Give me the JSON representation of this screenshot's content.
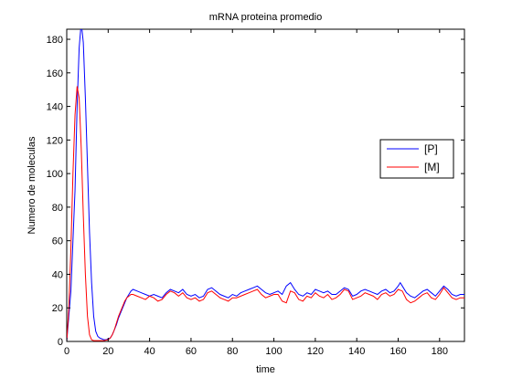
{
  "chart_data": {
    "type": "line",
    "title": "mRNA proteina promedio",
    "xlabel": "time",
    "ylabel": "Numero de moleculas",
    "xlim": [
      0,
      192
    ],
    "ylim": [
      0,
      186
    ],
    "xticks": [
      0,
      20,
      40,
      60,
      80,
      100,
      120,
      140,
      160,
      180
    ],
    "yticks": [
      0,
      20,
      40,
      60,
      80,
      100,
      120,
      140,
      160,
      180
    ],
    "grid": false,
    "legend_position": "right",
    "series": [
      {
        "name": "[P]",
        "color": "#0000ff",
        "x": [
          0,
          2,
          4,
          5,
          6,
          7,
          8,
          9,
          10,
          11,
          12,
          13,
          14,
          15,
          16,
          17,
          18,
          19,
          20,
          21,
          22,
          23,
          24,
          25,
          26,
          27,
          28,
          29,
          30,
          31,
          32,
          34,
          36,
          38,
          40,
          42,
          44,
          46,
          48,
          50,
          52,
          54,
          56,
          58,
          60,
          62,
          64,
          66,
          68,
          70,
          72,
          74,
          76,
          78,
          80,
          82,
          84,
          86,
          88,
          90,
          92,
          94,
          96,
          98,
          100,
          102,
          104,
          106,
          108,
          110,
          112,
          114,
          116,
          118,
          120,
          122,
          124,
          126,
          128,
          130,
          132,
          134,
          136,
          138,
          140,
          142,
          144,
          146,
          148,
          150,
          152,
          154,
          156,
          158,
          160,
          161,
          162,
          164,
          166,
          168,
          170,
          172,
          174,
          176,
          178,
          180,
          182,
          184,
          186,
          188,
          190,
          192
        ],
        "values": [
          0,
          30,
          90,
          140,
          175,
          190,
          178,
          145,
          105,
          65,
          35,
          15,
          6,
          3,
          2,
          1.5,
          1,
          1,
          1.5,
          2,
          4,
          7,
          10,
          14,
          17,
          20,
          23,
          26,
          28,
          30,
          31,
          30,
          29,
          28,
          27,
          28,
          27,
          26,
          29,
          31,
          30,
          29,
          31,
          28,
          27,
          28,
          26,
          27,
          31,
          32,
          30,
          28,
          27,
          26,
          28,
          27,
          29,
          30,
          31,
          32,
          33,
          31,
          29,
          28,
          29,
          30,
          28,
          33,
          35,
          31,
          28,
          27,
          29,
          28,
          31,
          30,
          29,
          30,
          28,
          28,
          30,
          32,
          31,
          27,
          28,
          30,
          31,
          30,
          29,
          28,
          30,
          31,
          29,
          30,
          33,
          35,
          33,
          29,
          27,
          26,
          28,
          30,
          31,
          29,
          27,
          30,
          33,
          31,
          28,
          27,
          28,
          28
        ]
      },
      {
        "name": "[M]",
        "color": "#ff0000",
        "x": [
          0,
          1,
          2,
          3,
          4,
          5,
          6,
          7,
          8,
          9,
          10,
          11,
          12,
          13,
          14,
          15,
          16,
          17,
          18,
          19,
          20,
          21,
          22,
          23,
          24,
          25,
          26,
          27,
          28,
          29,
          30,
          31,
          32,
          34,
          36,
          38,
          40,
          42,
          44,
          46,
          48,
          50,
          52,
          54,
          56,
          58,
          60,
          62,
          64,
          66,
          68,
          70,
          72,
          74,
          76,
          78,
          80,
          82,
          84,
          86,
          88,
          90,
          92,
          94,
          96,
          98,
          100,
          102,
          104,
          106,
          108,
          110,
          112,
          114,
          116,
          118,
          120,
          122,
          124,
          126,
          128,
          130,
          132,
          134,
          136,
          138,
          140,
          142,
          144,
          146,
          148,
          150,
          152,
          154,
          156,
          158,
          160,
          162,
          164,
          166,
          168,
          170,
          172,
          174,
          176,
          178,
          180,
          182,
          184,
          186,
          188,
          190,
          192
        ],
        "values": [
          0,
          20,
          55,
          100,
          135,
          152,
          145,
          115,
          75,
          40,
          15,
          4,
          1,
          0.5,
          0.5,
          0.5,
          0.5,
          0.5,
          0.5,
          0.8,
          1,
          2,
          4,
          7,
          11,
          15,
          18,
          21,
          24,
          26,
          27,
          28,
          28,
          27,
          26,
          25,
          27,
          26,
          24,
          25,
          28,
          30,
          29,
          27,
          29,
          26,
          25,
          26,
          24,
          25,
          29,
          30,
          28,
          26,
          25,
          24,
          26,
          26,
          27,
          28,
          29,
          30,
          31,
          28,
          26,
          27,
          28,
          28,
          24,
          23,
          30,
          29,
          25,
          24,
          27,
          26,
          29,
          27,
          26,
          28,
          25,
          26,
          28,
          31,
          30,
          25,
          26,
          27,
          29,
          28,
          27,
          25,
          28,
          29,
          27,
          28,
          31,
          30,
          25,
          23,
          24,
          26,
          28,
          29,
          26,
          25,
          28,
          32,
          29,
          26,
          25,
          26,
          26
        ]
      }
    ]
  }
}
